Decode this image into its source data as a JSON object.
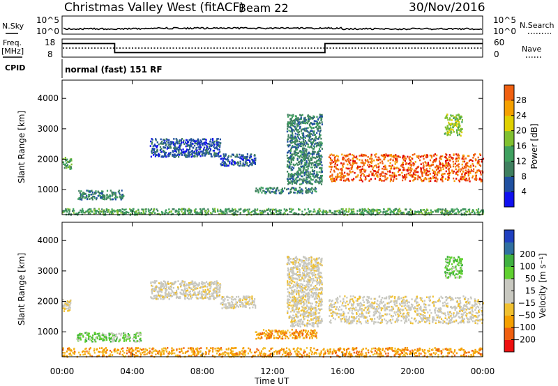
{
  "header": {
    "title": "Christmas Valley West (fitACF)",
    "beam": "Beam 22",
    "date": "30/Nov/2016"
  },
  "top_panels": {
    "nsky_label": "N.Sky",
    "nsearch_label": "N.Search",
    "log_tick_top": "10^5",
    "log_tick_bottom": "10^0",
    "freq_label_line1": "Freq.",
    "freq_label_line2": "[MHz]",
    "freq_ticks": [
      "18",
      "8"
    ],
    "nave_label": "Nave",
    "nave_ticks": [
      "60",
      "0"
    ],
    "cpid_label": "CPID",
    "cpid_value": "normal (fast) 151 RF",
    "freq_steps": [
      {
        "from_hour": 0,
        "to_hour": 3,
        "mhz": 15.5
      },
      {
        "from_hour": 3,
        "to_hour": 15,
        "mhz": 10.5
      },
      {
        "from_hour": 15,
        "to_hour": 24,
        "mhz": 15.5
      }
    ]
  },
  "colors": {
    "power": [
      "#1010f0",
      "#2050a0",
      "#3f7f5f",
      "#3fa05f",
      "#80c030",
      "#e0d000",
      "#f5a000",
      "#f06010",
      "#e00000"
    ],
    "velocity": [
      "#ee1010",
      "#f06010",
      "#f5a000",
      "#f0c030",
      "#c8c8c0",
      "#c8c8c0",
      "#60d030",
      "#40b040",
      "#3070a0",
      "#2040c0"
    ]
  },
  "chart_data": [
    {
      "type": "heatmap",
      "name": "power",
      "ylabel": "Slant Range [km]",
      "y_ticks": [
        1000,
        2000,
        3000,
        4000
      ],
      "ylim": [
        180,
        4600
      ],
      "xlim": [
        0,
        24
      ],
      "colorbar_label": "Power [dB]",
      "colorbar_ticks": [
        4,
        8,
        12,
        16,
        20,
        24,
        28
      ],
      "colorbar_range": [
        0,
        32
      ],
      "echo_regions": [
        {
          "hours": [
            0.0,
            0.5
          ],
          "range_km": [
            1700,
            2100
          ],
          "level": 3
        },
        {
          "hours": [
            0.8,
            3.5
          ],
          "range_km": [
            700,
            1000
          ],
          "level": 2
        },
        {
          "hours": [
            5.0,
            9.0
          ],
          "range_km": [
            2100,
            2700
          ],
          "level": 1
        },
        {
          "hours": [
            9.0,
            11.0
          ],
          "range_km": [
            1800,
            2200
          ],
          "level": 1
        },
        {
          "hours": [
            11.0,
            14.5
          ],
          "range_km": [
            900,
            1100
          ],
          "level": 2
        },
        {
          "hours": [
            12.8,
            14.8
          ],
          "range_km": [
            1200,
            3500
          ],
          "level": 2
        },
        {
          "hours": [
            15.2,
            24.0
          ],
          "range_km": [
            1300,
            2200
          ],
          "level": 7
        },
        {
          "hours": [
            21.8,
            22.8
          ],
          "range_km": [
            2800,
            3500
          ],
          "level": 4
        },
        {
          "hours": [
            0.0,
            24.0
          ],
          "range_km": [
            200,
            400
          ],
          "level": 3
        }
      ]
    },
    {
      "type": "heatmap",
      "name": "velocity",
      "ylabel": "Slant Range [km]",
      "y_ticks": [
        1000,
        2000,
        3000,
        4000
      ],
      "ylim": [
        180,
        4600
      ],
      "xlim": [
        0,
        24
      ],
      "x_ticks": [
        "00:00",
        "04:00",
        "08:00",
        "12:00",
        "16:00",
        "20:00",
        "00:00"
      ],
      "xlabel": "Time UT",
      "colorbar_label": "Velocity [m s⁻¹]",
      "colorbar_ticks": [
        -200,
        -100,
        -50,
        -15,
        15,
        50,
        100,
        200
      ],
      "colorbar_tick_labels": [
        "−200",
        "−100",
        "−50",
        "−15",
        "15",
        "50",
        "100",
        "200"
      ],
      "echo_regions": [
        {
          "hours": [
            0.0,
            0.5
          ],
          "range_km": [
            1700,
            2100
          ],
          "level": 4
        },
        {
          "hours": [
            0.8,
            4.5
          ],
          "range_km": [
            700,
            1000
          ],
          "level": 6
        },
        {
          "hours": [
            5.0,
            9.0
          ],
          "range_km": [
            2100,
            2700
          ],
          "level": 4
        },
        {
          "hours": [
            9.0,
            11.0
          ],
          "range_km": [
            1800,
            2200
          ],
          "level": 4
        },
        {
          "hours": [
            11.0,
            14.5
          ],
          "range_km": [
            800,
            1100
          ],
          "level": 2
        },
        {
          "hours": [
            12.8,
            14.8
          ],
          "range_km": [
            1200,
            3500
          ],
          "level": 4
        },
        {
          "hours": [
            15.2,
            24.0
          ],
          "range_km": [
            1300,
            2200
          ],
          "level": 4
        },
        {
          "hours": [
            21.8,
            22.8
          ],
          "range_km": [
            2800,
            3500
          ],
          "level": 6
        },
        {
          "hours": [
            0.0,
            24.0
          ],
          "range_km": [
            200,
            500
          ],
          "level": 2
        }
      ]
    }
  ]
}
